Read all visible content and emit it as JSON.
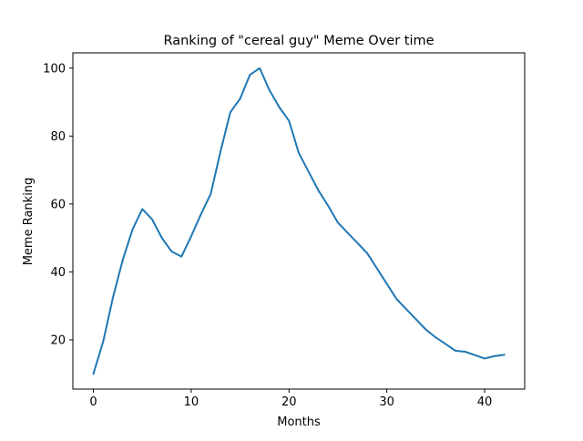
{
  "chart_data": {
    "type": "line",
    "title": "Ranking of \"cereal guy\" Meme Over time",
    "xlabel": "Months",
    "ylabel": "Meme Ranking",
    "xlim": [
      -2.1,
      44.1
    ],
    "ylim": [
      5.5,
      104.5
    ],
    "xticks": [
      0,
      10,
      20,
      30,
      40
    ],
    "yticks": [
      20,
      40,
      60,
      80,
      100
    ],
    "grid": false,
    "legend": "none",
    "series": [
      {
        "color": "#1f77b4",
        "x": [
          0,
          1,
          2,
          3,
          4,
          5,
          6,
          7,
          8,
          9,
          10,
          11,
          12,
          13,
          14,
          15,
          16,
          17,
          18,
          19,
          20,
          21,
          22,
          23,
          24,
          25,
          26,
          27,
          28,
          29,
          30,
          31,
          32,
          33,
          34,
          35,
          36,
          37,
          38,
          39,
          40,
          41,
          42
        ],
        "y": [
          10,
          19.5,
          32.5,
          43.5,
          52.5,
          58.5,
          55.5,
          50,
          46,
          44.5,
          50.5,
          57,
          63,
          75.5,
          87,
          91,
          98,
          100,
          93.5,
          88.5,
          84.5,
          75,
          69.5,
          64,
          59.5,
          54.5,
          51.5,
          48.5,
          45.5,
          41,
          36.5,
          32,
          29,
          26,
          23,
          20.7,
          18.8,
          16.8,
          16.5,
          15.5,
          14.5,
          15.2,
          15.6
        ]
      }
    ]
  }
}
